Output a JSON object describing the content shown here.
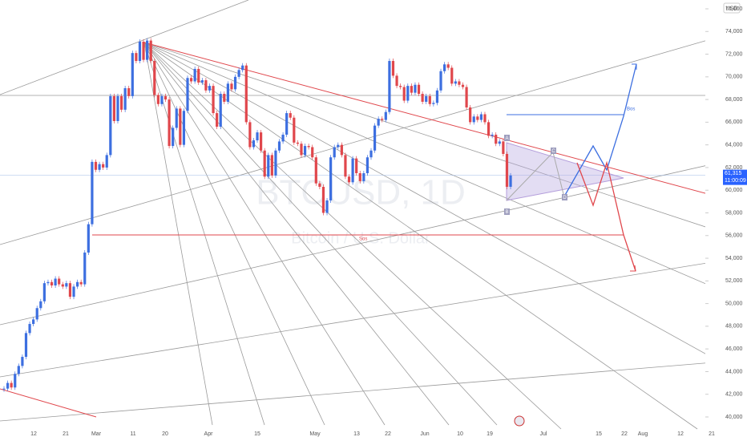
{
  "chart_data": {
    "type": "candlestick",
    "watermark": "BTCUSD, 1D",
    "watermark_sub": "Bitcoin / U.S. Dollar",
    "currency": "USD",
    "up_color": "#3d6fe0",
    "down_color": "#e0474c",
    "values": [
      42500,
      43000,
      42600,
      43800,
      44500,
      45300,
      47400,
      48200,
      48600,
      49600,
      50200,
      51800,
      51900,
      51600,
      52200,
      51700,
      51500,
      51800,
      50600,
      51500,
      51900,
      51700,
      54500,
      57000,
      62500,
      61800,
      62300,
      62000,
      63100,
      68300,
      66100,
      68300,
      67100,
      69000,
      68300,
      72100,
      71400,
      73100,
      71500,
      73200,
      71400,
      68400,
      67600,
      68300,
      68000,
      63900,
      65500,
      67200,
      64000,
      67000,
      69900,
      69600,
      70700,
      69500,
      69700,
      68800,
      69200,
      66800,
      65600,
      68500,
      67800,
      69400,
      68900,
      70000,
      70600,
      71000,
      66000,
      63800,
      64400,
      65100,
      63500,
      61200,
      63100,
      61300,
      63500,
      64300,
      64900,
      66800,
      66400,
      64200,
      64100,
      63100,
      63900,
      63800,
      62900,
      60600,
      60300,
      58000,
      59100,
      62900,
      63800,
      64000,
      63100,
      61200,
      60700,
      62800,
      61500,
      60800,
      61500,
      62900,
      63500,
      65700,
      66300,
      66200,
      66900,
      71400,
      70100,
      69200,
      69100,
      67900,
      69200,
      68600,
      69300,
      68500,
      67800,
      68300,
      67600,
      67700,
      68800,
      70500,
      71100,
      70800,
      69400,
      69600,
      69300,
      69100,
      67300,
      66000,
      66500,
      66200,
      66700,
      66000,
      64800,
      64900,
      64100,
      64300,
      63200,
      60300,
      61300
    ],
    "ylim": [
      40000,
      76000
    ],
    "yticks": [
      {
        "value": 40000,
        "label": "40,000"
      },
      {
        "value": 42000,
        "label": "42,000"
      },
      {
        "value": 44000,
        "label": "44,000"
      },
      {
        "value": 46000,
        "label": "46,000"
      },
      {
        "value": 48000,
        "label": "48,000"
      },
      {
        "value": 50000,
        "label": "50,000"
      },
      {
        "value": 52000,
        "label": "52,000"
      },
      {
        "value": 54000,
        "label": "54,000"
      },
      {
        "value": 56000,
        "label": "56,000"
      },
      {
        "value": 58000,
        "label": "58,000"
      },
      {
        "value": 60000,
        "label": "60,000"
      },
      {
        "value": 62000,
        "label": "62,000"
      },
      {
        "value": 64000,
        "label": "64,000"
      },
      {
        "value": 66000,
        "label": "66,000"
      },
      {
        "value": 68000,
        "label": "68,000"
      },
      {
        "value": 70000,
        "label": "70,000"
      },
      {
        "value": 72000,
        "label": "72,000"
      },
      {
        "value": 74000,
        "label": "74,000"
      },
      {
        "value": 76000,
        "label": "76,000"
      }
    ],
    "x_tick_labels": [
      "12",
      "21",
      "Mar",
      "11",
      "20",
      "Apr",
      "15",
      "May",
      "13",
      "22",
      "Jun",
      "10",
      "19",
      "Jul",
      "15",
      "22",
      "Aug",
      "12",
      "21"
    ],
    "last_price": {
      "value": 61315,
      "label": "61,315"
    },
    "countdown": "11:00:09",
    "annotations": {
      "a": "A",
      "b": "B",
      "c": "C",
      "d": "D",
      "sos": "Sos",
      "bos": "Bos"
    }
  }
}
